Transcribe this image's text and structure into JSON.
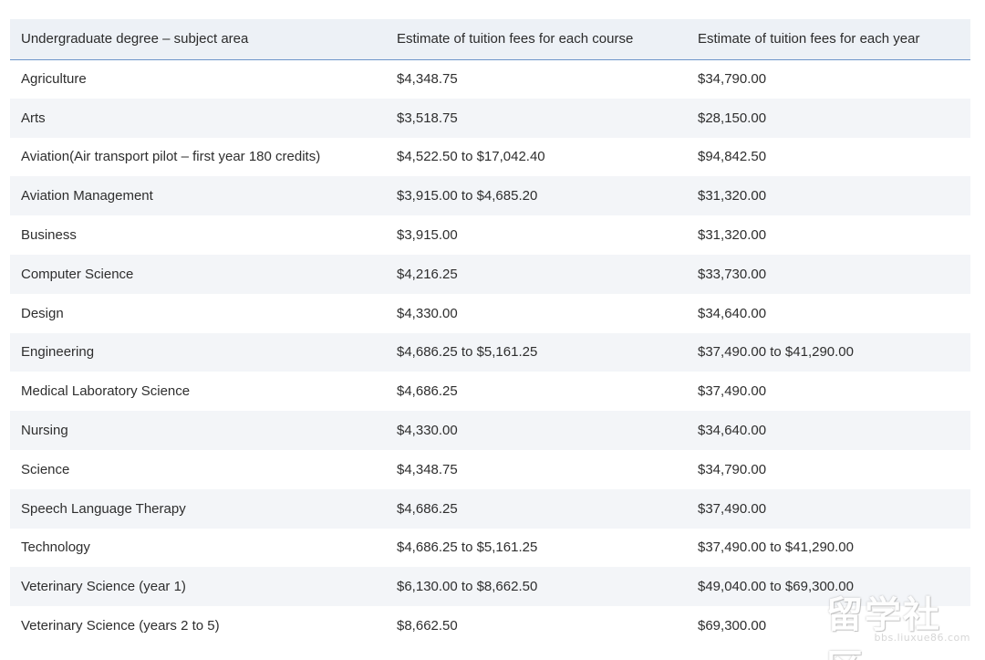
{
  "table": {
    "headers": [
      "Undergraduate degree – subject area",
      "Estimate of tuition fees for each course",
      "Estimate of tuition fees for each year"
    ],
    "rows": [
      [
        "Agriculture",
        "$4,348.75",
        "$34,790.00"
      ],
      [
        "Arts",
        "$3,518.75",
        "$28,150.00"
      ],
      [
        "Aviation(Air transport pilot – first year 180 credits)",
        "$4,522.50 to $17,042.40",
        "$94,842.50"
      ],
      [
        "Aviation Management",
        "$3,915.00 to $4,685.20",
        "$31,320.00"
      ],
      [
        "Business",
        "$3,915.00",
        "$31,320.00"
      ],
      [
        "Computer Science",
        "$4,216.25",
        "$33,730.00"
      ],
      [
        "Design",
        "$4,330.00",
        "$34,640.00"
      ],
      [
        "Engineering",
        "$4,686.25 to $5,161.25",
        "$37,490.00 to $41,290.00"
      ],
      [
        "Medical Laboratory Science",
        "$4,686.25",
        "$37,490.00"
      ],
      [
        "Nursing",
        "$4,330.00",
        "$34,640.00"
      ],
      [
        "Science",
        "$4,348.75",
        "$34,790.00"
      ],
      [
        "Speech Language Therapy",
        "$4,686.25",
        "$37,490.00"
      ],
      [
        "Technology",
        "$4,686.25 to $5,161.25",
        "$37,490.00 to $41,290.00"
      ],
      [
        "Veterinary Science (year 1)",
        "$6,130.00 to $8,662.50",
        "$49,040.00 to $69,300.00"
      ],
      [
        "Veterinary Science (years 2 to 5)",
        "$8,662.50",
        "$69,300.00"
      ]
    ]
  },
  "watermark": {
    "main": "留学社区",
    "url": "bbs.liuxue86.com"
  }
}
